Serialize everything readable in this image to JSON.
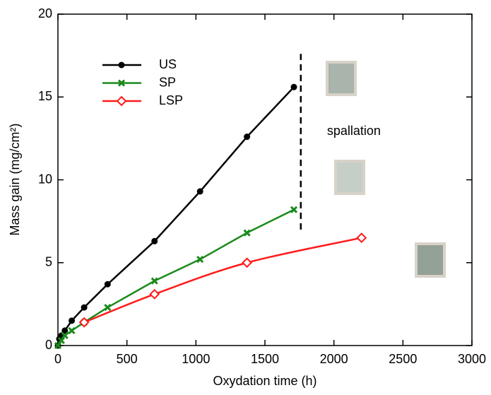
{
  "chart_data": {
    "type": "line",
    "x_label": "Oxydation time (h)",
    "y_label": "Mass gain (mg/cm²)",
    "xlim": [
      0,
      3000
    ],
    "xticks": [
      0,
      500,
      1000,
      1500,
      2000,
      2500,
      3000
    ],
    "ylim": [
      0,
      20
    ],
    "yticks": [
      0,
      5,
      10,
      15,
      20
    ],
    "legend": "upper left",
    "series": [
      {
        "name": "US",
        "color": "#000000",
        "marker": "circle",
        "smooth": false,
        "x": [
          0,
          10,
          25,
          50,
          100,
          190,
          360,
          700,
          1030,
          1370,
          1710
        ],
        "values": [
          0,
          0.4,
          0.6,
          0.9,
          1.5,
          2.3,
          3.7,
          6.3,
          9.3,
          12.6,
          15.6
        ]
      },
      {
        "name": "SP",
        "color": "#1a8a1a",
        "marker": "cross",
        "smooth": false,
        "x": [
          0,
          25,
          50,
          100,
          190,
          360,
          700,
          1030,
          1370,
          1710
        ],
        "values": [
          0,
          0.3,
          0.6,
          0.9,
          1.4,
          2.3,
          3.9,
          5.2,
          6.8,
          8.2
        ]
      },
      {
        "name": "LSP",
        "color": "#ff1a1a",
        "marker": "diamond",
        "smooth": true,
        "x": [
          190,
          700,
          1370,
          2200
        ],
        "values": [
          1.4,
          3.1,
          5.0,
          6.5
        ]
      }
    ],
    "annotations": [
      {
        "text": "spallation",
        "x": 1950,
        "y": 12.9
      }
    ],
    "spallation_line": {
      "x": 1760,
      "y": [
        7.0,
        17.6
      ]
    }
  }
}
